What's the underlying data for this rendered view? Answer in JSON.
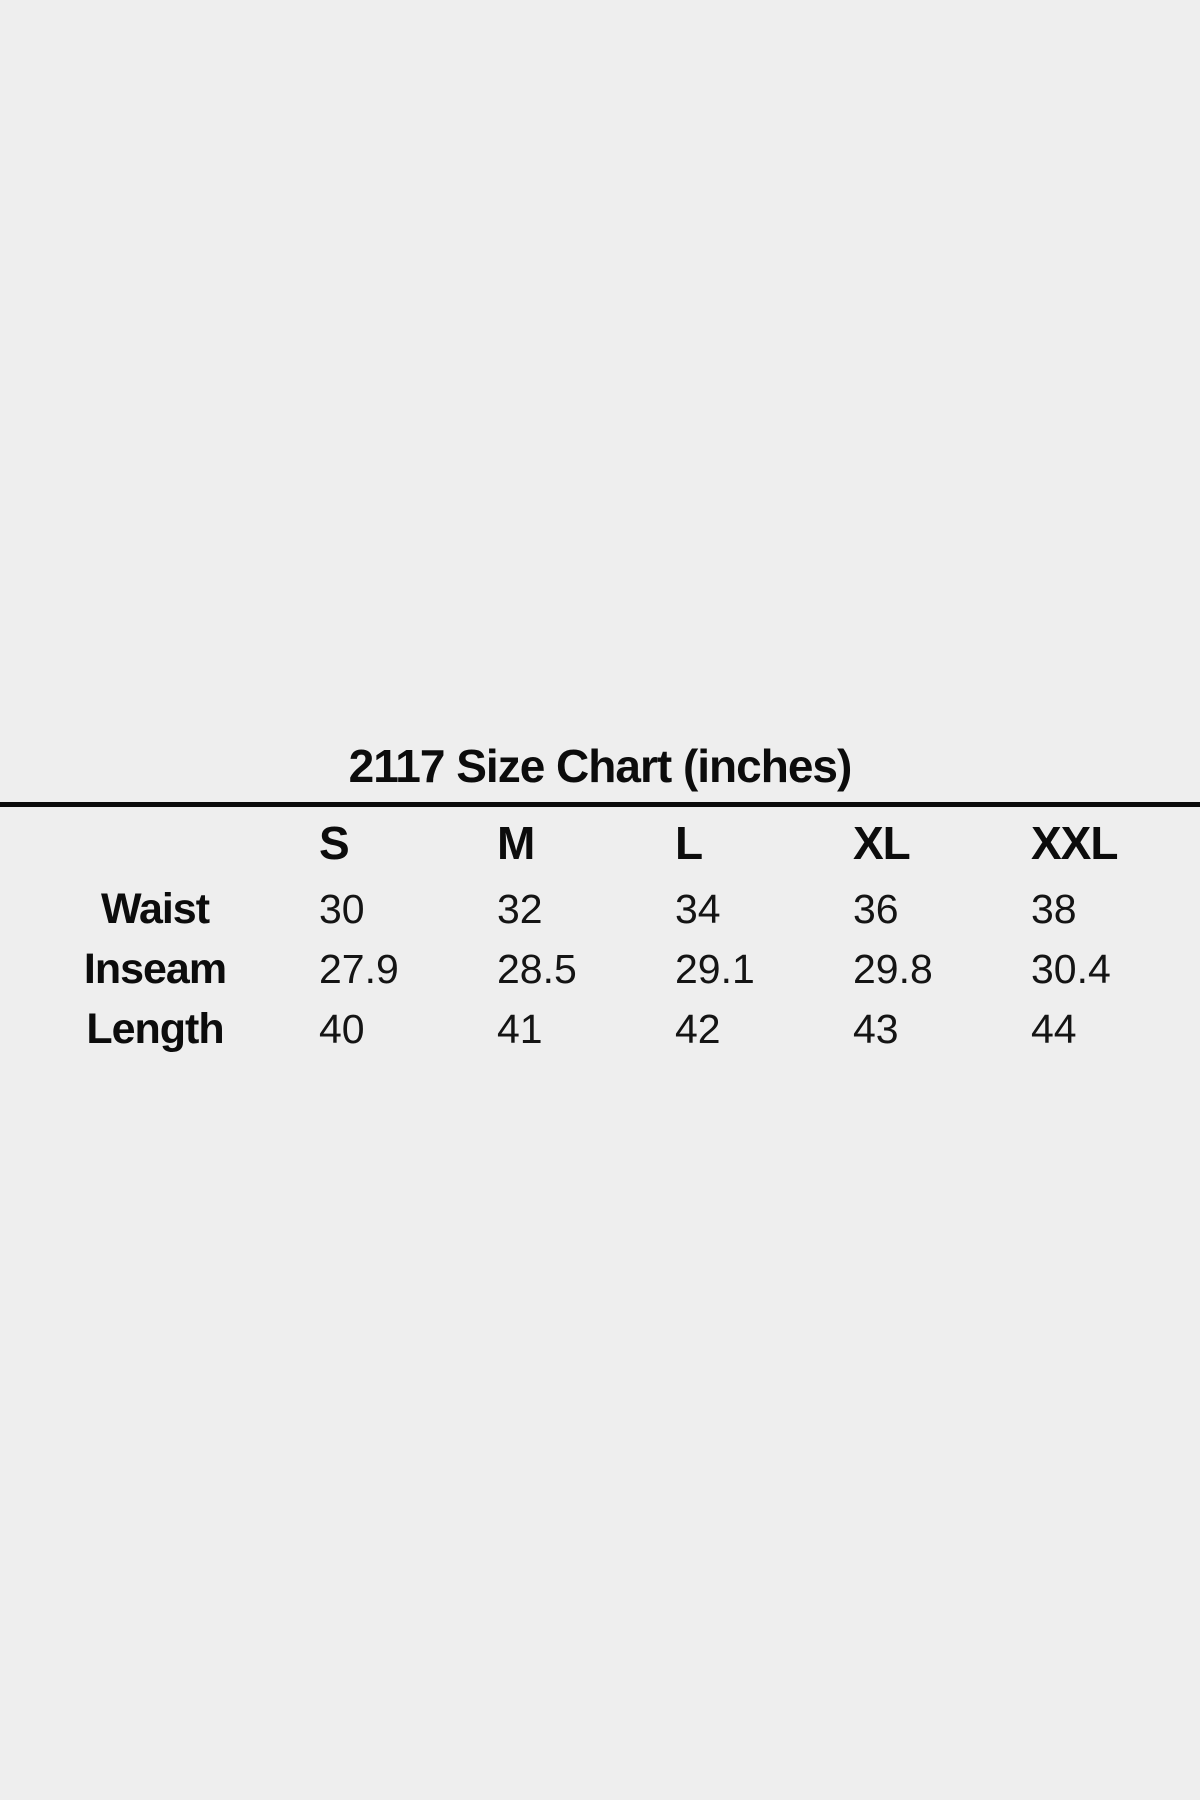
{
  "page": {
    "background_color": "#eeeeee",
    "text_color": "#0e0e0e",
    "rule_color": "#0a0a0a"
  },
  "chart_data": {
    "type": "table",
    "title": "2117 Size Chart (inches)",
    "unit": "inches",
    "columns": [
      "S",
      "M",
      "L",
      "XL",
      "XXL"
    ],
    "rows": [
      {
        "label": "Waist",
        "values": [
          "30",
          "32",
          "34",
          "36",
          "38"
        ]
      },
      {
        "label": "Inseam",
        "values": [
          "27.9",
          "28.5",
          "29.1",
          "29.8",
          "30.4"
        ]
      },
      {
        "label": "Length",
        "values": [
          "40",
          "41",
          "42",
          "43",
          "44"
        ]
      }
    ]
  }
}
